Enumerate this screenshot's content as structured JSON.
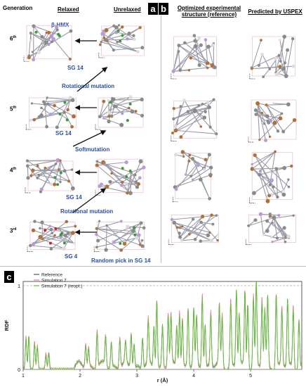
{
  "panel_ab": {
    "letters": {
      "a": "a",
      "b": "b"
    },
    "headers": {
      "generation": "Generation",
      "relaxed": "Relaxed",
      "unrelaxed": "Unrelaxed",
      "optimized": "Optimized experimental structure (reference)",
      "predicted": "Predicted by USPEX"
    },
    "generations": [
      {
        "num": "6",
        "suffix": "th"
      },
      {
        "num": "5",
        "suffix": "th"
      },
      {
        "num": "4",
        "suffix": "th"
      },
      {
        "num": "3",
        "suffix": "rd"
      }
    ],
    "labels": {
      "beta_hmx": "β-HMX",
      "sg14_a": "SG 14",
      "sg14_b": "SG 14",
      "sg14_c": "SG 14",
      "sg4": "SG 4",
      "rot1": "Rotational mutation",
      "soft": "Softmutation",
      "rot2": "Rotational mutation",
      "random": "Random pick in SG 14"
    }
  },
  "panel_c": {
    "letter": "c",
    "chart_data": {
      "type": "line",
      "xlabel": "r (Å)",
      "ylabel": "RDF",
      "xlim": [
        1,
        5.9
      ],
      "ylim": [
        0,
        1.05
      ],
      "x_ticks": [
        "1",
        "2",
        "3",
        "4",
        "5"
      ],
      "y_ticks": [
        "0",
        "1"
      ],
      "legend": "top-left",
      "series": [
        {
          "name": "Reference",
          "color": "#555555",
          "peaks": [
            [
              1.05,
              0.38
            ],
            [
              1.1,
              0.4
            ],
            [
              1.2,
              0.32
            ],
            [
              1.25,
              0.28
            ],
            [
              1.4,
              0.18
            ],
            [
              1.45,
              0.2
            ],
            [
              2.1,
              0.28
            ],
            [
              2.15,
              0.22
            ],
            [
              2.3,
              0.44
            ],
            [
              2.45,
              0.36
            ],
            [
              2.55,
              0.3
            ],
            [
              2.7,
              0.36
            ],
            [
              2.8,
              0.25
            ],
            [
              2.9,
              0.42
            ],
            [
              2.95,
              0.28
            ],
            [
              3.1,
              0.36
            ],
            [
              3.2,
              0.52
            ],
            [
              3.3,
              0.5
            ],
            [
              3.35,
              0.82
            ],
            [
              3.45,
              0.5
            ],
            [
              3.55,
              0.62
            ],
            [
              3.6,
              0.58
            ],
            [
              3.7,
              0.5
            ],
            [
              3.75,
              0.68
            ],
            [
              3.8,
              0.58
            ],
            [
              3.9,
              0.7
            ],
            [
              4.0,
              0.66
            ],
            [
              4.05,
              0.56
            ],
            [
              4.15,
              0.9
            ],
            [
              4.2,
              0.52
            ],
            [
              4.3,
              0.64
            ],
            [
              4.45,
              0.7
            ],
            [
              4.5,
              0.6
            ],
            [
              4.65,
              0.78
            ],
            [
              4.75,
              0.92
            ],
            [
              4.8,
              0.62
            ],
            [
              4.9,
              0.88
            ],
            [
              4.95,
              0.78
            ],
            [
              5.05,
              0.84
            ],
            [
              5.1,
              1.0
            ],
            [
              5.2,
              0.8
            ],
            [
              5.25,
              0.66
            ],
            [
              5.3,
              0.82
            ],
            [
              5.45,
              0.88
            ],
            [
              5.55,
              0.68
            ],
            [
              5.65,
              0.78
            ],
            [
              5.75,
              0.72
            ],
            [
              5.85,
              0.58
            ]
          ]
        },
        {
          "name": "Simulation 7",
          "color": "#d98a8a"
        },
        {
          "name": "Simulation 7 (reopt.)",
          "color": "#5cbf3a"
        }
      ]
    }
  }
}
